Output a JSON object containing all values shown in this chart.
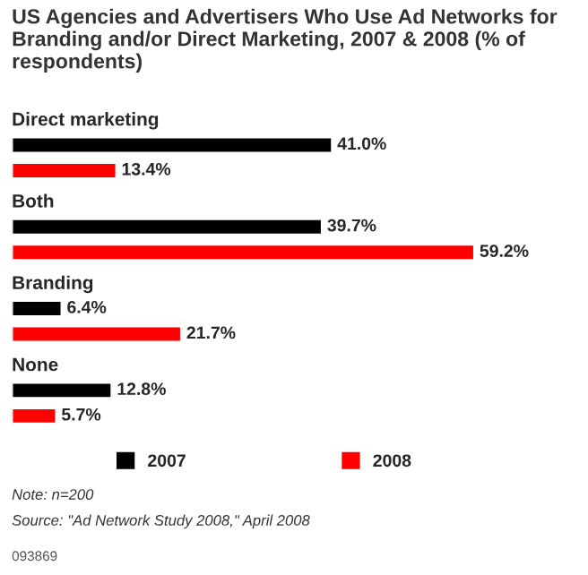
{
  "chart_data": {
    "type": "bar",
    "orientation": "horizontal",
    "title": "US Agencies and Advertisers Who Use Ad Networks for Branding and/or Direct Marketing, 2007 & 2008 (% of respondents)",
    "categories": [
      "Direct marketing",
      "Both",
      "Branding",
      "None"
    ],
    "series": [
      {
        "name": "2007",
        "color": "#000000",
        "values": [
          41.0,
          39.7,
          6.4,
          12.8
        ],
        "value_labels": [
          "41.0%",
          "39.7%",
          "6.4%",
          "12.8%"
        ]
      },
      {
        "name": "2008",
        "color": "#ff0000",
        "values": [
          13.4,
          59.2,
          21.7,
          5.7
        ],
        "value_labels": [
          "13.4%",
          "59.2%",
          "21.7%",
          "5.7%"
        ]
      }
    ],
    "legend": "bottom",
    "annotations": [
      "Note: n=200",
      "Source: \"Ad Network Study 2008,\" April 2008",
      "093869"
    ]
  }
}
